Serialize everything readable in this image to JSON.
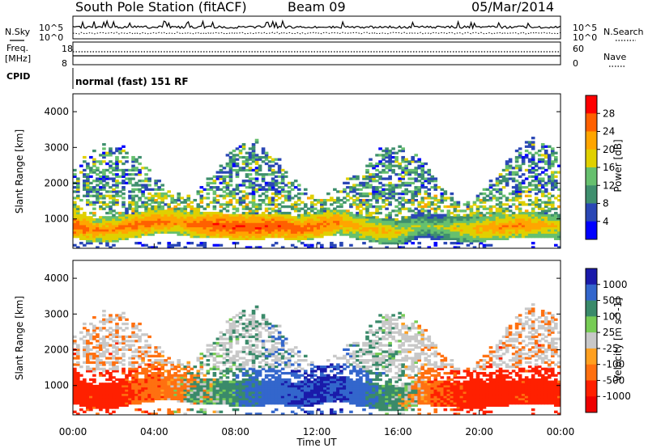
{
  "header": {
    "station": "South Pole Station (fitACF)",
    "beam": "Beam 09",
    "date": "05/Mar/2014"
  },
  "aux": {
    "nsky_label": "N.Sky",
    "nsearch_label": "N.Search",
    "freq_label_1": "Freq.",
    "freq_label_2": "[MHz]",
    "nave_label": "Nave",
    "cpid_label": "CPID",
    "cpid_text": "normal (fast) 151 RF",
    "noise_ticks_left": [
      "10^5",
      "10^0"
    ],
    "noise_ticks_right": [
      "10^5",
      "10^0"
    ],
    "freq_ticks": [
      "18",
      "8"
    ],
    "nave_ticks": [
      "60",
      "0"
    ]
  },
  "colors": {
    "power_scale": [
      "#0000ff",
      "#2a47b5",
      "#3f8f6e",
      "#66c06e",
      "#e0d000",
      "#ffa500",
      "#ff6000",
      "#ff0000"
    ],
    "velocity_scale": [
      "#1a1aaa",
      "#3366cc",
      "#3a8a6a",
      "#77cc55",
      "#c8c8c8",
      "#ffa020",
      "#ff7010",
      "#ff2000",
      "#ee0000"
    ]
  },
  "chart_data": [
    {
      "type": "heatmap",
      "name": "power",
      "ylabel": "Slant Range [km]",
      "ylim": [
        180,
        4500
      ],
      "yticks": [
        "4000",
        "3000",
        "2000",
        "1000"
      ],
      "xlim": [
        0,
        24
      ],
      "colorbar_label": "Power [dB]",
      "colorbar_ticks": [
        "28",
        "24",
        "20",
        "16",
        "12",
        "8",
        "4"
      ],
      "colorbar_range": [
        0,
        32
      ],
      "profile": {
        "hours": [
          0,
          1,
          2,
          3,
          4,
          5,
          6,
          7,
          8,
          9,
          10,
          11,
          12,
          13,
          14,
          15,
          16,
          17,
          18,
          19,
          20,
          21,
          22,
          23,
          24
        ],
        "center_range_km": [
          800,
          650,
          700,
          800,
          900,
          900,
          800,
          800,
          750,
          750,
          800,
          700,
          800,
          900,
          750,
          650,
          600,
          800,
          750,
          700,
          700,
          750,
          800,
          800,
          750
        ],
        "peak_power_db": [
          30,
          26,
          26,
          28,
          28,
          26,
          28,
          30,
          30,
          30,
          30,
          28,
          28,
          26,
          24,
          24,
          22,
          18,
          18,
          22,
          24,
          26,
          26,
          24,
          22
        ]
      }
    },
    {
      "type": "heatmap",
      "name": "velocity",
      "ylabel": "Slant Range [km]",
      "ylim": [
        180,
        4500
      ],
      "yticks": [
        "4000",
        "3000",
        "2000",
        "1000"
      ],
      "xlim": [
        0,
        24
      ],
      "xticks": [
        "00:00",
        "04:00",
        "08:00",
        "12:00",
        "16:00",
        "20:00",
        "00:00"
      ],
      "xlabel": "Time UT",
      "colorbar_label": "Velocity [m s^-1]",
      "colorbar_ticks": [
        "1000",
        "500",
        "100",
        "25",
        "-25",
        "-100",
        "-500",
        "-1000"
      ],
      "colorbar_range": [
        -1000,
        1000
      ],
      "profile": {
        "hours": [
          0,
          1,
          2,
          3,
          4,
          5,
          6,
          7,
          8,
          9,
          10,
          11,
          12,
          13,
          14,
          15,
          16,
          17,
          18,
          19,
          20,
          21,
          22,
          23,
          24
        ],
        "velocity_ms": [
          -500,
          -400,
          -500,
          -300,
          -200,
          -100,
          50,
          100,
          200,
          400,
          600,
          700,
          800,
          800,
          500,
          200,
          100,
          -100,
          -300,
          -400,
          -500,
          -500,
          -400,
          -500,
          -400
        ]
      }
    }
  ]
}
